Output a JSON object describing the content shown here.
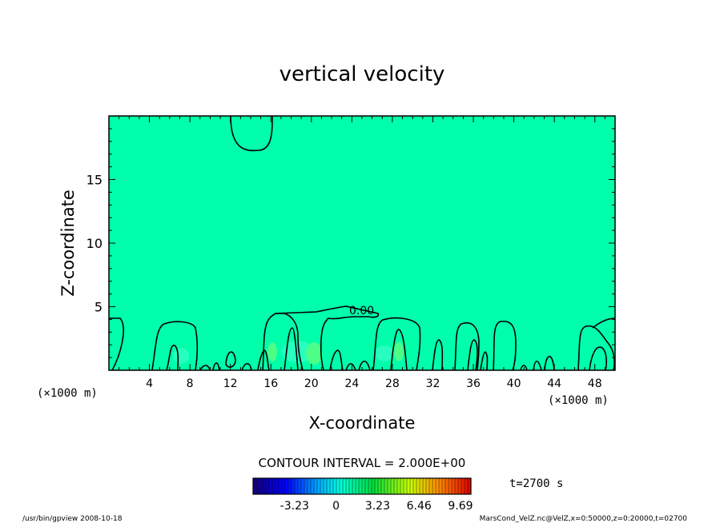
{
  "chart_data": {
    "type": "heatmap",
    "title": "vertical velocity",
    "xlabel": "X-coordinate",
    "ylabel": "Z-coordinate",
    "x_unit": "(×1000 m)",
    "x_unit_right": "(×1000 m)",
    "xlim": [
      0,
      50
    ],
    "ylim": [
      0,
      20
    ],
    "xticks": [
      "4",
      "8",
      "12",
      "16",
      "20",
      "24",
      "28",
      "32",
      "36",
      "40",
      "44",
      "48"
    ],
    "yticks": [
      "5",
      "10",
      "15"
    ],
    "contour_label": "0.00",
    "contour_interval_text": "CONTOUR INTERVAL = 2.000E+00",
    "time_text": "t=2700 s",
    "colorbar": {
      "ticks": [
        "-3.23",
        "0",
        "3.23",
        "6.46",
        "9.69"
      ],
      "range": [
        -6.46,
        10.5
      ]
    },
    "field_color": "#00ffaa",
    "footer_left": "/usr/bin/gpview   2008-10-18",
    "footer_right": "MarsCond_VelZ.nc@VelZ,x=0:50000,z=0:20000,t=02700"
  }
}
